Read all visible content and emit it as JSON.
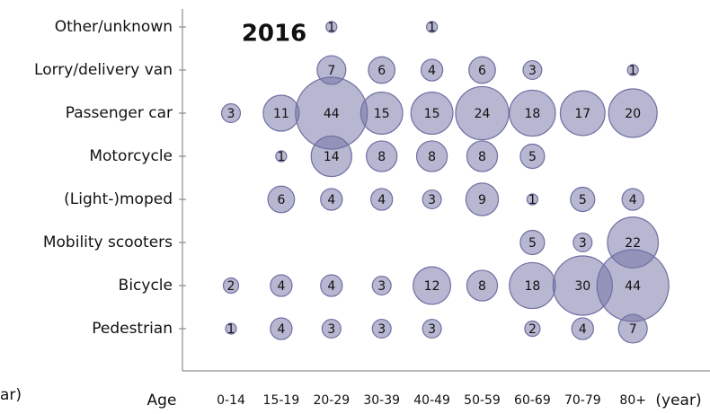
{
  "chart_data": {
    "type": "bubble",
    "title": "2016",
    "x_label": "Age",
    "x_unit": "(year)",
    "left_cut_text": "ar)",
    "x_categories": [
      "0-14",
      "15-19",
      "20-29",
      "30-39",
      "40-49",
      "50-59",
      "60-69",
      "70-79",
      "80+"
    ],
    "y_categories": [
      "Other/unknown",
      "Lorry/delivery van",
      "Passenger car",
      "Motorcycle",
      "(Light-)moped",
      "Mobility scooters",
      "Bicycle",
      "Pedestrian"
    ],
    "values": [
      [
        null,
        null,
        1,
        null,
        1,
        null,
        null,
        null,
        null
      ],
      [
        null,
        null,
        7,
        6,
        4,
        6,
        3,
        null,
        1
      ],
      [
        3,
        11,
        44,
        15,
        15,
        24,
        18,
        17,
        20
      ],
      [
        null,
        1,
        14,
        8,
        8,
        8,
        5,
        null,
        null
      ],
      [
        null,
        6,
        4,
        4,
        3,
        9,
        1,
        5,
        4
      ],
      [
        null,
        null,
        null,
        null,
        null,
        null,
        5,
        3,
        22
      ],
      [
        2,
        4,
        4,
        3,
        12,
        8,
        18,
        30,
        44
      ],
      [
        1,
        4,
        3,
        3,
        3,
        null,
        2,
        4,
        7
      ]
    ],
    "color": "#6f6fa3"
  }
}
